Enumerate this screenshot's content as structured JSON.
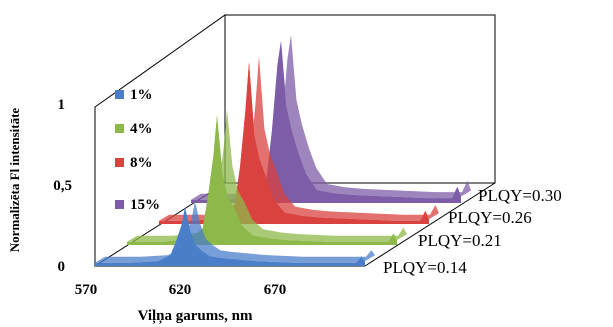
{
  "chart_data": {
    "type": "area",
    "projection": "3d-ribbon",
    "title": "",
    "xlabel": "Viļņa garums, nm",
    "ylabel": "Normalizēta  Fl intensitāte",
    "x_ticks": [
      "570",
      "620",
      "670"
    ],
    "y_ticks": [
      "0",
      "0,5",
      "1"
    ],
    "xlim": [
      570,
      720
    ],
    "ylim": [
      0,
      1
    ],
    "legend_position": "left",
    "series": [
      {
        "name": "1%",
        "annotation": "PLQY=0.14",
        "color": "#4a7ec9",
        "points": [
          [
            570,
            0.02
          ],
          [
            590,
            0.02
          ],
          [
            605,
            0.03
          ],
          [
            612,
            0.07
          ],
          [
            615,
            0.15
          ],
          [
            618,
            0.25
          ],
          [
            620,
            0.36
          ],
          [
            623,
            0.22
          ],
          [
            626,
            0.13
          ],
          [
            630,
            0.09
          ],
          [
            634,
            0.06
          ],
          [
            640,
            0.05
          ],
          [
            650,
            0.04
          ],
          [
            660,
            0.03
          ],
          [
            680,
            0.02
          ],
          [
            700,
            0.02
          ],
          [
            715,
            0.02
          ],
          [
            718,
            0.06
          ],
          [
            720,
            0.03
          ]
        ]
      },
      {
        "name": "4%",
        "annotation": "PLQY=0.21",
        "color": "#8db84a",
        "points": [
          [
            570,
            0.02
          ],
          [
            590,
            0.02
          ],
          [
            605,
            0.04
          ],
          [
            612,
            0.1
          ],
          [
            615,
            0.3
          ],
          [
            618,
            0.55
          ],
          [
            620,
            0.8
          ],
          [
            623,
            0.45
          ],
          [
            626,
            0.3
          ],
          [
            630,
            0.22
          ],
          [
            634,
            0.12
          ],
          [
            640,
            0.06
          ],
          [
            650,
            0.04
          ],
          [
            660,
            0.03
          ],
          [
            680,
            0.02
          ],
          [
            700,
            0.02
          ],
          [
            715,
            0.02
          ],
          [
            718,
            0.07
          ],
          [
            720,
            0.03
          ]
        ]
      },
      {
        "name": "8%",
        "annotation": "PLQY=0.26",
        "color": "#d9423f",
        "points": [
          [
            570,
            0.02
          ],
          [
            590,
            0.02
          ],
          [
            605,
            0.04
          ],
          [
            612,
            0.12
          ],
          [
            615,
            0.35
          ],
          [
            618,
            0.7
          ],
          [
            620,
            1.0
          ],
          [
            623,
            0.55
          ],
          [
            626,
            0.4
          ],
          [
            630,
            0.28
          ],
          [
            634,
            0.15
          ],
          [
            640,
            0.07
          ],
          [
            650,
            0.05
          ],
          [
            660,
            0.04
          ],
          [
            680,
            0.03
          ],
          [
            700,
            0.02
          ],
          [
            715,
            0.02
          ],
          [
            718,
            0.08
          ],
          [
            720,
            0.03
          ]
        ]
      },
      {
        "name": "15%",
        "annotation": "PLQY=0.30",
        "color": "#7d5ca8",
        "points": [
          [
            570,
            0.02
          ],
          [
            590,
            0.02
          ],
          [
            605,
            0.05
          ],
          [
            612,
            0.15
          ],
          [
            615,
            0.45
          ],
          [
            618,
            0.85
          ],
          [
            620,
            1.0
          ],
          [
            623,
            0.6
          ],
          [
            626,
            0.45
          ],
          [
            630,
            0.3
          ],
          [
            634,
            0.18
          ],
          [
            640,
            0.08
          ],
          [
            650,
            0.06
          ],
          [
            660,
            0.05
          ],
          [
            680,
            0.04
          ],
          [
            700,
            0.03
          ],
          [
            715,
            0.03
          ],
          [
            718,
            0.1
          ],
          [
            720,
            0.04
          ]
        ]
      }
    ]
  }
}
